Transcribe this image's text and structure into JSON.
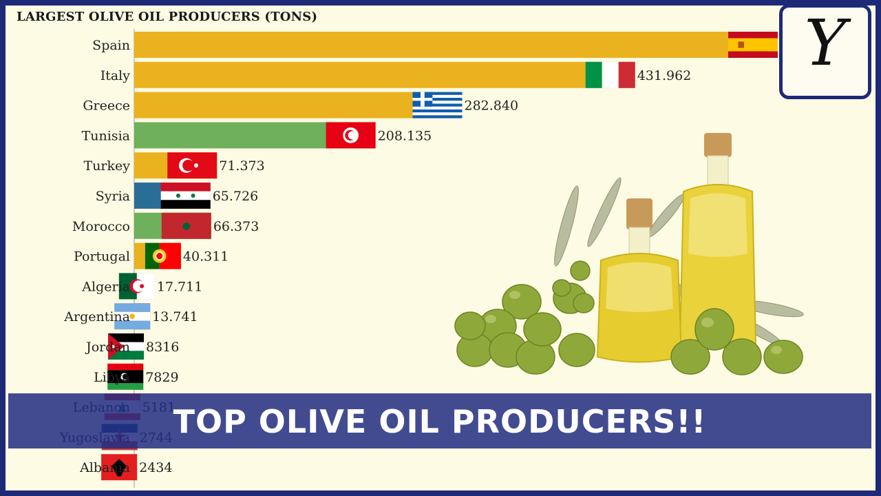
{
  "chart_data": {
    "type": "bar",
    "orientation": "horizontal",
    "title": "LARGEST OLIVE OIL PRODUCERS (TONS)",
    "categories": [
      "Spain",
      "Italy",
      "Greece",
      "Tunisia",
      "Turkey",
      "Syria",
      "Morocco",
      "Portugal",
      "Algeria",
      "Argentina",
      "Jordan",
      "Libya",
      "Lebanon",
      "Yugoslavia",
      "Albania"
    ],
    "values": [
      555000,
      431962,
      282840,
      208135,
      71373,
      65726,
      66373,
      40311,
      17711,
      13741,
      8316,
      7829,
      5181,
      2744,
      2434
    ],
    "value_labels": [
      "",
      "431.962",
      "282.840",
      "208.135",
      "71.373",
      "65.726",
      "66.373",
      "40.311",
      "17.711",
      "13.741",
      "8316",
      "7829",
      "5181",
      "2744",
      "2434"
    ],
    "bar_colors": [
      "#eab21f",
      "#eab21f",
      "#eab21f",
      "#6fb05c",
      "#eab21f",
      "#2a6e98",
      "#6fb05c",
      "#eab21f",
      "#6fb05c",
      "#8a3d6a",
      "#2a6e98",
      "#6fb05c",
      "#2a6e98",
      "#2a6e98",
      "#eab21f"
    ],
    "flag_icons": [
      "spain-flag-icon",
      "italy-flag-icon",
      "greece-flag-icon",
      "tunisia-flag-icon",
      "turkey-flag-icon",
      "syria-flag-icon",
      "morocco-flag-icon",
      "portugal-flag-icon",
      "algeria-flag-icon",
      "argentina-flag-icon",
      "jordan-flag-icon",
      "libya-flag-icon",
      "lebanon-flag-icon",
      "yugoslavia-flag-icon",
      "albania-flag-icon"
    ],
    "xlim": [
      0,
      555000
    ],
    "grid": false,
    "legend": "none"
  },
  "banner": {
    "text": "TOP OLIVE OIL PRODUCERS!!"
  },
  "logo": {
    "letter": "Y",
    "icon": "channel-logo-icon"
  },
  "illustration": {
    "icon": "olive-oil-bottles-illustration"
  }
}
